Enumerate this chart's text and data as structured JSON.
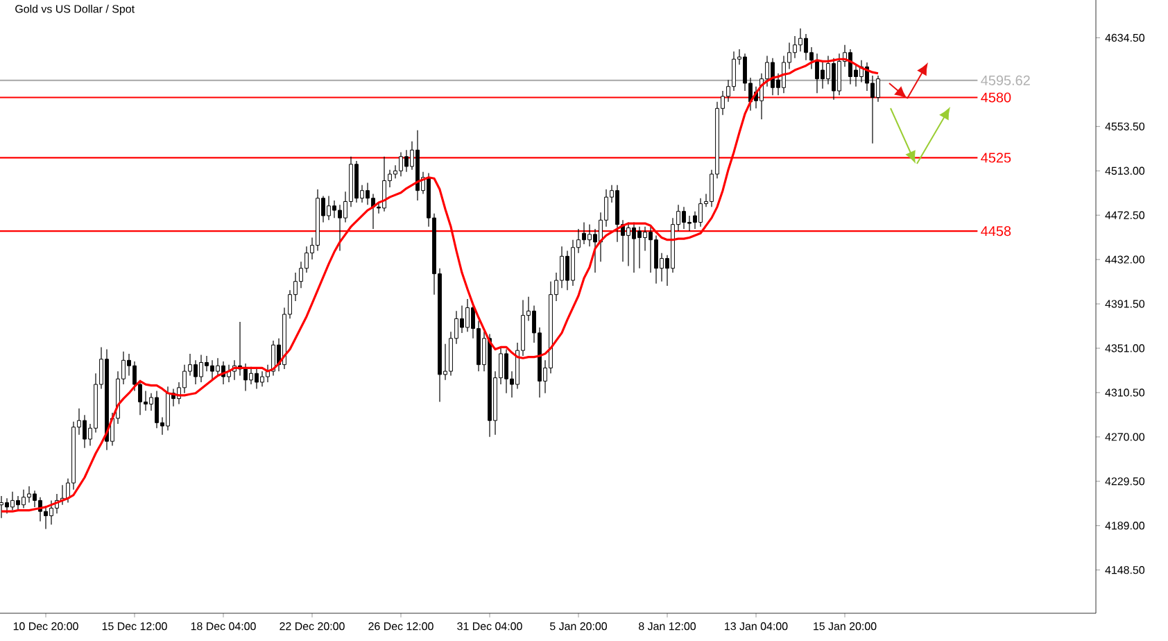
{
  "chart_data": {
    "type": "candlestick",
    "title": "Gold vs US Dollar / Spot",
    "categories": [
      null,
      null,
      null,
      null,
      null,
      null,
      null,
      null,
      "10 Dec 20:00",
      null,
      null,
      null,
      null,
      null,
      null,
      null,
      null,
      null,
      null,
      null,
      null,
      null,
      null,
      null,
      "15 Dec 12:00",
      null,
      null,
      null,
      null,
      null,
      null,
      null,
      null,
      null,
      null,
      null,
      null,
      null,
      null,
      null,
      "18 Dec 04:00",
      null,
      null,
      null,
      null,
      null,
      null,
      null,
      null,
      null,
      null,
      null,
      null,
      null,
      null,
      null,
      "22 Dec 20:00",
      null,
      null,
      null,
      null,
      null,
      null,
      null,
      null,
      null,
      null,
      null,
      null,
      null,
      null,
      null,
      "26 Dec 12:00",
      null,
      null,
      null,
      null,
      null,
      null,
      null,
      null,
      null,
      null,
      null,
      null,
      null,
      null,
      null,
      "31 Dec 04:00",
      null,
      null,
      null,
      null,
      null,
      null,
      null,
      null,
      null,
      null,
      null,
      null,
      null,
      null,
      null,
      "5 Jan 20:00",
      null,
      null,
      null,
      null,
      null,
      null,
      null,
      null,
      null,
      null,
      null,
      null,
      null,
      null,
      null,
      "8 Jan 12:00",
      null,
      null,
      null,
      null,
      null,
      null,
      null,
      null,
      null,
      null,
      null,
      null,
      null,
      null,
      null,
      "13 Jan 04:00",
      null,
      null,
      null,
      null,
      null,
      null,
      null,
      null,
      null,
      null,
      null,
      null,
      null,
      null,
      null,
      "15 Jan 20:00",
      null,
      null,
      null,
      null,
      null,
      null
    ],
    "ohlc": [
      [
        4208,
        4216,
        4196,
        4210
      ],
      [
        4210,
        4214,
        4200,
        4206
      ],
      [
        4206,
        4220,
        4203,
        4212
      ],
      [
        4212,
        4216,
        4203,
        4208
      ],
      [
        4208,
        4222,
        4205,
        4215
      ],
      [
        4215,
        4225,
        4210,
        4218
      ],
      [
        4218,
        4221,
        4206,
        4212
      ],
      [
        4212,
        4215,
        4193,
        4202
      ],
      [
        4202,
        4207,
        4186,
        4198
      ],
      [
        4198,
        4212,
        4190,
        4205
      ],
      [
        4205,
        4218,
        4200,
        4212
      ],
      [
        4212,
        4226,
        4208,
        4214
      ],
      [
        4214,
        4232,
        4210,
        4228
      ],
      [
        4228,
        4284,
        4222,
        4279
      ],
      [
        4279,
        4296,
        4272,
        4285
      ],
      [
        4285,
        4290,
        4260,
        4268
      ],
      [
        4268,
        4282,
        4262,
        4278
      ],
      [
        4278,
        4328,
        4274,
        4318
      ],
      [
        4318,
        4352,
        4314,
        4341
      ],
      [
        4341,
        4350,
        4258,
        4266
      ],
      [
        4266,
        4292,
        4262,
        4287
      ],
      [
        4287,
        4330,
        4282,
        4323
      ],
      [
        4323,
        4348,
        4318,
        4340
      ],
      [
        4340,
        4346,
        4326,
        4335
      ],
      [
        4335,
        4339,
        4312,
        4318
      ],
      [
        4318,
        4322,
        4290,
        4302
      ],
      [
        4302,
        4312,
        4294,
        4300
      ],
      [
        4300,
        4310,
        4294,
        4306
      ],
      [
        4306,
        4312,
        4278,
        4283
      ],
      [
        4283,
        4288,
        4272,
        4280
      ],
      [
        4280,
        4316,
        4276,
        4310
      ],
      [
        4310,
        4314,
        4298,
        4305
      ],
      [
        4305,
        4320,
        4300,
        4315
      ],
      [
        4315,
        4336,
        4310,
        4330
      ],
      [
        4330,
        4346,
        4326,
        4336
      ],
      [
        4336,
        4340,
        4318,
        4325
      ],
      [
        4325,
        4345,
        4320,
        4338
      ],
      [
        4338,
        4344,
        4330,
        4335
      ],
      [
        4335,
        4340,
        4322,
        4330
      ],
      [
        4330,
        4342,
        4326,
        4335
      ],
      [
        4335,
        4339,
        4318,
        4325
      ],
      [
        4325,
        4336,
        4320,
        4330
      ],
      [
        4330,
        4340,
        4322,
        4335
      ],
      [
        4335,
        4375,
        4326,
        4332
      ],
      [
        4332,
        4337,
        4312,
        4322
      ],
      [
        4322,
        4334,
        4318,
        4328
      ],
      [
        4328,
        4332,
        4314,
        4320
      ],
      [
        4320,
        4330,
        4316,
        4325
      ],
      [
        4325,
        4336,
        4320,
        4330
      ],
      [
        4330,
        4358,
        4326,
        4354
      ],
      [
        4354,
        4360,
        4330,
        4336
      ],
      [
        4336,
        4388,
        4332,
        4382
      ],
      [
        4382,
        4404,
        4378,
        4400
      ],
      [
        4400,
        4420,
        4394,
        4412
      ],
      [
        4412,
        4430,
        4406,
        4424
      ],
      [
        4424,
        4444,
        4420,
        4438
      ],
      [
        4438,
        4452,
        4432,
        4445
      ],
      [
        4445,
        4496,
        4440,
        4488
      ],
      [
        4488,
        4490,
        4466,
        4472
      ],
      [
        4472,
        4490,
        4468,
        4481
      ],
      [
        4481,
        4486,
        4470,
        4477
      ],
      [
        4477,
        4482,
        4440,
        4470
      ],
      [
        4470,
        4494,
        4466,
        4485
      ],
      [
        4485,
        4526,
        4480,
        4519
      ],
      [
        4519,
        4522,
        4484,
        4488
      ],
      [
        4488,
        4500,
        4484,
        4495
      ],
      [
        4495,
        4502,
        4482,
        4488
      ],
      [
        4488,
        4492,
        4460,
        4480
      ],
      [
        4480,
        4484,
        4474,
        4479
      ],
      [
        4479,
        4526,
        4476,
        4504
      ],
      [
        4504,
        4514,
        4498,
        4510
      ],
      [
        4510,
        4518,
        4506,
        4513
      ],
      [
        4513,
        4530,
        4508,
        4526
      ],
      [
        4526,
        4532,
        4512,
        4517
      ],
      [
        4517,
        4540,
        4514,
        4532
      ],
      [
        4532,
        4550,
        4486,
        4495
      ],
      [
        4495,
        4512,
        4492,
        4507
      ],
      [
        4507,
        4511,
        4462,
        4470
      ],
      [
        4470,
        4474,
        4400,
        4419
      ],
      [
        4419,
        4424,
        4302,
        4327
      ],
      [
        4327,
        4355,
        4322,
        4330
      ],
      [
        4330,
        4366,
        4326,
        4360
      ],
      [
        4360,
        4385,
        4355,
        4378
      ],
      [
        4378,
        4390,
        4365,
        4370
      ],
      [
        4370,
        4396,
        4366,
        4388
      ],
      [
        4388,
        4392,
        4360,
        4369
      ],
      [
        4369,
        4376,
        4330,
        4336
      ],
      [
        4336,
        4366,
        4330,
        4360
      ],
      [
        4360,
        4364,
        4270,
        4285
      ],
      [
        4285,
        4330,
        4272,
        4324
      ],
      [
        4324,
        4352,
        4318,
        4346
      ],
      [
        4346,
        4350,
        4310,
        4323
      ],
      [
        4323,
        4330,
        4306,
        4318
      ],
      [
        4318,
        4356,
        4314,
        4349
      ],
      [
        4349,
        4395,
        4344,
        4381
      ],
      [
        4381,
        4398,
        4376,
        4385
      ],
      [
        4385,
        4390,
        4356,
        4365
      ],
      [
        4365,
        4370,
        4306,
        4321
      ],
      [
        4321,
        4340,
        4310,
        4333
      ],
      [
        4333,
        4412,
        4328,
        4400
      ],
      [
        4400,
        4420,
        4394,
        4413
      ],
      [
        4413,
        4444,
        4406,
        4435
      ],
      [
        4435,
        4440,
        4404,
        4413
      ],
      [
        4413,
        4450,
        4408,
        4443
      ],
      [
        4443,
        4460,
        4438,
        4450
      ],
      [
        4456,
        4466,
        4446,
        4450
      ],
      [
        4450,
        4464,
        4444,
        4455
      ],
      [
        4455,
        4460,
        4420,
        4448
      ],
      [
        4448,
        4475,
        4430,
        4468
      ],
      [
        4468,
        4496,
        4462,
        4489
      ],
      [
        4489,
        4500,
        4484,
        4495
      ],
      [
        4495,
        4500,
        4448,
        4464
      ],
      [
        4464,
        4468,
        4430,
        4454
      ],
      [
        4454,
        4466,
        4426,
        4461
      ],
      [
        4461,
        4466,
        4420,
        4451
      ],
      [
        4458,
        4462,
        4424,
        4452
      ],
      [
        4452,
        4462,
        4440,
        4457
      ],
      [
        4457,
        4462,
        4420,
        4450
      ],
      [
        4450,
        4454,
        4410,
        4424
      ],
      [
        4424,
        4438,
        4412,
        4433
      ],
      [
        4433,
        4436,
        4408,
        4424
      ],
      [
        4424,
        4470,
        4420,
        4464
      ],
      [
        4464,
        4482,
        4458,
        4476
      ],
      [
        4476,
        4480,
        4460,
        4466
      ],
      [
        4466,
        4472,
        4458,
        4465
      ],
      [
        4472,
        4476,
        4460,
        4466
      ],
      [
        4466,
        4488,
        4462,
        4483
      ],
      [
        4483,
        4492,
        4480,
        4485
      ],
      [
        4485,
        4514,
        4480,
        4510
      ],
      [
        4510,
        4576,
        4506,
        4570
      ],
      [
        4570,
        4586,
        4564,
        4581
      ],
      [
        4581,
        4596,
        4576,
        4590
      ],
      [
        4590,
        4622,
        4586,
        4615
      ],
      [
        4615,
        4624,
        4610,
        4617
      ],
      [
        4617,
        4620,
        4586,
        4593
      ],
      [
        4593,
        4598,
        4568,
        4576
      ],
      [
        4585,
        4590,
        4570,
        4577
      ],
      [
        4577,
        4602,
        4560,
        4597
      ],
      [
        4597,
        4618,
        4590,
        4612
      ],
      [
        4612,
        4616,
        4582,
        4589
      ],
      [
        4596,
        4602,
        4582,
        4589
      ],
      [
        4589,
        4618,
        4584,
        4612
      ],
      [
        4612,
        4630,
        4606,
        4621
      ],
      [
        4621,
        4636,
        4616,
        4628
      ],
      [
        4628,
        4643,
        4622,
        4634
      ],
      [
        4634,
        4638,
        4614,
        4621
      ],
      [
        4621,
        4626,
        4606,
        4614
      ],
      [
        4614,
        4620,
        4584,
        4597
      ],
      [
        4605,
        4612,
        4588,
        4597
      ],
      [
        4597,
        4618,
        4592,
        4611
      ],
      [
        4611,
        4616,
        4578,
        4586
      ],
      [
        4586,
        4620,
        4582,
        4613
      ],
      [
        4613,
        4628,
        4608,
        4621
      ],
      [
        4621,
        4624,
        4592,
        4599
      ],
      [
        4605,
        4610,
        4590,
        4599
      ],
      [
        4599,
        4614,
        4594,
        4608
      ],
      [
        4608,
        4612,
        4586,
        4593
      ],
      [
        4593,
        4600,
        4538,
        4580
      ],
      [
        4580,
        4600,
        4576,
        4597
      ]
    ],
    "series": [
      {
        "type": "line",
        "color": "#ff0000",
        "values": [
          4202,
          4202,
          4202,
          4203,
          4203,
          4203,
          4204,
          4205,
          4206,
          4208,
          4210,
          4212,
          4214,
          4217,
          4225,
          4233,
          4244,
          4255,
          4264,
          4274,
          4287,
          4299,
          4305,
          4310,
          4316,
          4321,
          4318,
          4317,
          4317,
          4314,
          4310,
          4309,
          4308,
          4308,
          4309,
          4310,
          4314,
          4318,
          4322,
          4326,
          4328,
          4330,
          4333,
          4333,
          4333,
          4333,
          4333,
          4333,
          4330,
          4332,
          4337,
          4344,
          4350,
          4360,
          4370,
          4380,
          4392,
          4404,
          4416,
          4428,
          4439,
          4448,
          4455,
          4462,
          4467,
          4472,
          4477,
          4480,
          4484,
          4486,
          4489,
          4491,
          4493,
          4497,
          4500,
          4503,
          4505,
          4507,
          4506,
          4496,
          4478,
          4462,
          4440,
          4420,
          4405,
          4391,
          4379,
          4368,
          4357,
          4350,
          4352,
          4352,
          4347,
          4343,
          4342,
          4343,
          4343,
          4344,
          4346,
          4351,
          4358,
          4365,
          4377,
          4388,
          4399,
          4415,
          4425,
          4442,
          4449,
          4454,
          4457,
          4460,
          4463,
          4465,
          4465,
          4465,
          4465,
          4463,
          4457,
          4452,
          4450,
          4450,
          4451,
          4451,
          4452,
          4454,
          4456,
          4463,
          4470,
          4480,
          4495,
          4514,
          4530,
          4548,
          4565,
          4576,
          4584,
          4591,
          4595,
          4598,
          4599,
          4601,
          4602,
          4605,
          4607,
          4609,
          4612,
          4614,
          4613,
          4613,
          4614,
          4615,
          4615,
          4613,
          4610,
          4607,
          4605,
          4603,
          4602
        ]
      }
    ],
    "ylim": [
      4109,
      4669
    ],
    "yticks": [
      {
        "value": 4148.5,
        "label": "4148.50"
      },
      {
        "value": 4189,
        "label": "4189.00"
      },
      {
        "value": 4229.5,
        "label": "4229.50"
      },
      {
        "value": 4270,
        "label": "4270.00"
      },
      {
        "value": 4310.5,
        "label": "4310.50"
      },
      {
        "value": 4351,
        "label": "4351.00"
      },
      {
        "value": 4391.5,
        "label": "4391.50"
      },
      {
        "value": 4432,
        "label": "4432.00"
      },
      {
        "value": 4472.5,
        "label": "4472.50"
      },
      {
        "value": 4513,
        "label": "4513.00"
      },
      {
        "value": 4553.5,
        "label": "4553.50"
      },
      {
        "value": 4634.5,
        "label": "4634.50"
      }
    ],
    "ref_lines": [
      {
        "axis": "y",
        "value": 4595.62,
        "label": "4595.62",
        "color": "#b0b0b0"
      },
      {
        "axis": "y",
        "value": 4580,
        "label": "4580",
        "color": "#ff0000"
      },
      {
        "axis": "y",
        "value": 4525,
        "label": "4525",
        "color": "#ff0000"
      },
      {
        "axis": "y",
        "value": 4458,
        "label": "4458",
        "color": "#ff0000"
      }
    ],
    "grid": false,
    "marker": "none",
    "line_style": "solid"
  }
}
